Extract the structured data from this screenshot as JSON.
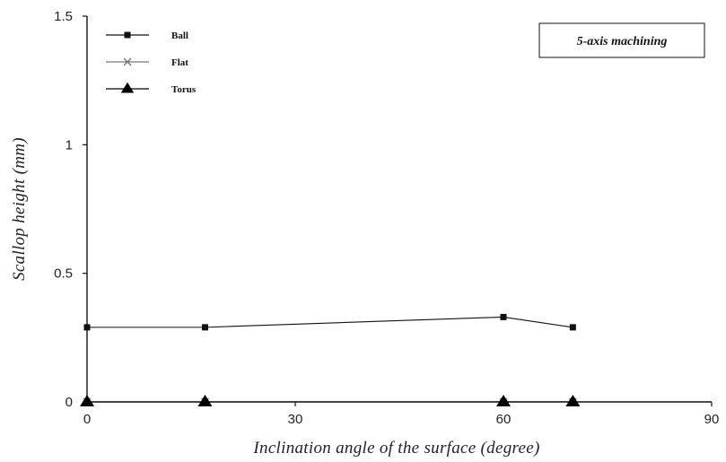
{
  "chart_data": {
    "type": "line",
    "title": "",
    "xlabel": "Inclination angle of the surface (degree)",
    "ylabel": "Scallop height (mm)",
    "xlim": [
      0,
      90
    ],
    "ylim": [
      0,
      1.5
    ],
    "xticks": [
      {
        "value": 0,
        "label": "0"
      },
      {
        "value": 30,
        "label": "30"
      },
      {
        "value": 60,
        "label": "60"
      },
      {
        "value": 90,
        "label": "90"
      }
    ],
    "yticks": [
      {
        "value": 0,
        "label": "0"
      },
      {
        "value": 0.5,
        "label": "0.5"
      },
      {
        "value": 1,
        "label": "1"
      },
      {
        "value": 1.5,
        "label": "1.5"
      }
    ],
    "grid": false,
    "legend_position": "top-left",
    "annotation": "5-axis machining",
    "series": [
      {
        "name": "Ball",
        "marker": "square",
        "color": "#111111",
        "x": [
          0,
          17,
          60,
          70
        ],
        "y": [
          0.29,
          0.29,
          0.33,
          0.29
        ]
      },
      {
        "name": "Flat",
        "marker": "cross",
        "color": "#777777",
        "x": [
          0,
          17,
          60,
          70
        ],
        "y": [
          0,
          0,
          0,
          0
        ]
      },
      {
        "name": "Torus",
        "marker": "triangle",
        "color": "#000000",
        "x": [
          0,
          17,
          60,
          70
        ],
        "y": [
          0,
          0,
          0,
          0
        ]
      }
    ]
  }
}
